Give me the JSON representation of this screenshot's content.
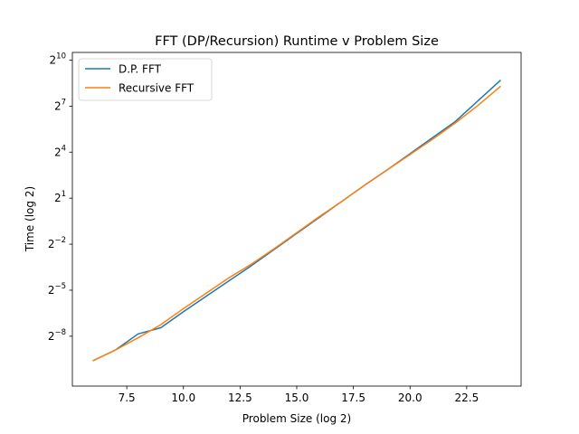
{
  "chart_data": {
    "type": "line",
    "title": "FFT (DP/Recursion) Runtime v Problem Size",
    "xlabel": "Problem Size (log 2)",
    "ylabel": "Time (log 2)",
    "xlim": [
      5.1,
      24.9
    ],
    "ylim": [
      -11.25,
      10.5
    ],
    "yscale": "log2",
    "grid": false,
    "legend_position": "top-left",
    "x_ticks": [
      7.5,
      10.0,
      12.5,
      15.0,
      17.5,
      20.0,
      22.5
    ],
    "x_tick_labels": [
      "7.5",
      "10.0",
      "12.5",
      "15.0",
      "17.5",
      "20.0",
      "22.5"
    ],
    "y_ticks": [
      -8,
      -5,
      -2,
      1,
      4,
      7,
      10
    ],
    "y_tick_base": "2",
    "y_tick_exponents": [
      "−8",
      "−5",
      "−2",
      "1",
      "4",
      "7",
      "10"
    ],
    "series": [
      {
        "name": "D.P. FFT",
        "color": "#1f77b4",
        "x": [
          6,
          7,
          8,
          9,
          10,
          11,
          12,
          13,
          14,
          15,
          16,
          17,
          18,
          19,
          20,
          21,
          22,
          23,
          24
        ],
        "y": [
          -9.6,
          -8.9,
          -7.85,
          -7.45,
          -6.4,
          -5.4,
          -4.4,
          -3.4,
          -2.35,
          -1.3,
          -0.25,
          0.8,
          1.85,
          2.85,
          3.9,
          4.95,
          6.0,
          7.35,
          8.7
        ]
      },
      {
        "name": "Recursive FFT",
        "color": "#ff7f0e",
        "x": [
          6,
          7,
          8,
          9,
          10,
          11,
          12,
          13,
          14,
          15,
          16,
          17,
          18,
          19,
          20,
          21,
          22,
          23,
          24
        ],
        "y": [
          -9.6,
          -8.9,
          -8.1,
          -7.25,
          -6.2,
          -5.2,
          -4.2,
          -3.3,
          -2.3,
          -1.25,
          -0.2,
          0.8,
          1.85,
          2.85,
          3.85,
          4.85,
          5.9,
          7.05,
          8.3
        ]
      }
    ]
  }
}
